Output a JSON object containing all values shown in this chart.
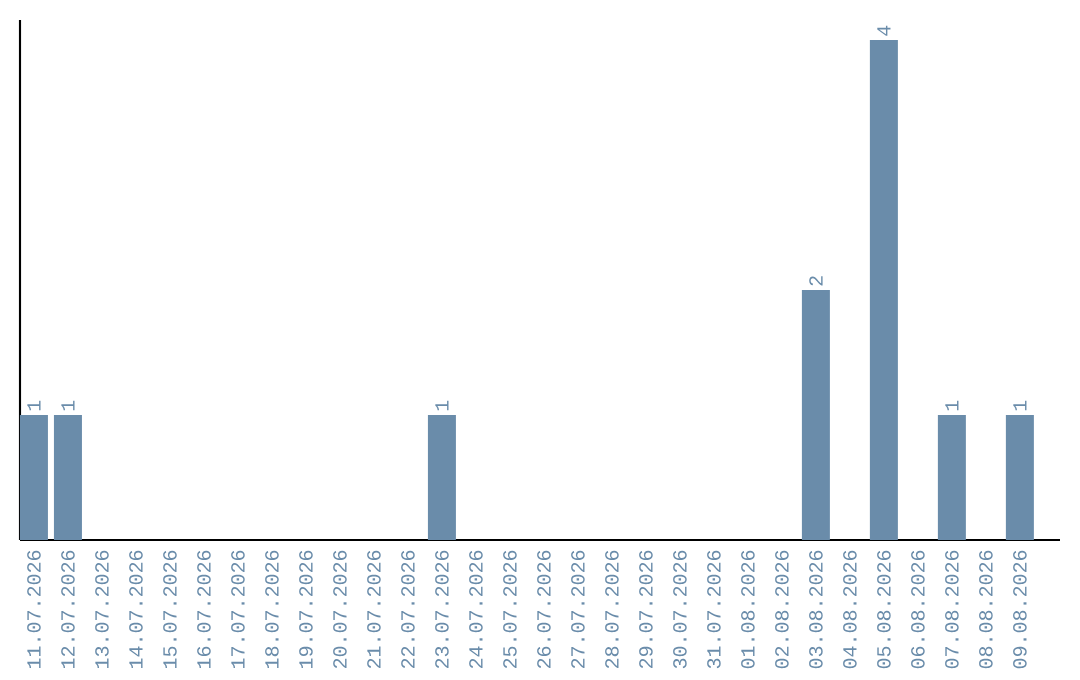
{
  "chart_data": {
    "type": "bar",
    "categories": [
      "11.07.2026",
      "12.07.2026",
      "13.07.2026",
      "14.07.2026",
      "15.07.2026",
      "16.07.2026",
      "17.07.2026",
      "18.07.2026",
      "19.07.2026",
      "20.07.2026",
      "21.07.2026",
      "22.07.2026",
      "23.07.2026",
      "24.07.2026",
      "25.07.2026",
      "26.07.2026",
      "27.07.2026",
      "28.07.2026",
      "29.07.2026",
      "30.07.2026",
      "31.07.2026",
      "01.08.2026",
      "02.08.2026",
      "03.08.2026",
      "04.08.2026",
      "05.08.2026",
      "06.08.2026",
      "07.08.2026",
      "08.08.2026",
      "09.08.2026"
    ],
    "values": [
      1,
      1,
      0,
      0,
      0,
      0,
      0,
      0,
      0,
      0,
      0,
      0,
      1,
      0,
      0,
      0,
      0,
      0,
      0,
      0,
      0,
      0,
      0,
      2,
      0,
      4,
      0,
      1,
      0,
      1
    ],
    "value_labels": [
      "1",
      "1",
      null,
      null,
      null,
      null,
      null,
      null,
      null,
      null,
      null,
      null,
      "1",
      null,
      null,
      null,
      null,
      null,
      null,
      null,
      null,
      null,
      null,
      "2",
      null,
      "4",
      null,
      "1",
      null,
      "1"
    ],
    "color": "#6a8caa",
    "tick_labels": "x"
  }
}
